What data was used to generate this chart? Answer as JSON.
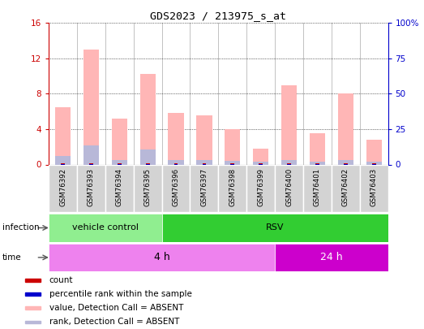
{
  "title": "GDS2023 / 213975_s_at",
  "samples": [
    "GSM76392",
    "GSM76393",
    "GSM76394",
    "GSM76395",
    "GSM76396",
    "GSM76397",
    "GSM76398",
    "GSM76399",
    "GSM76400",
    "GSM76401",
    "GSM76402",
    "GSM76403"
  ],
  "pink_values": [
    6.5,
    13.0,
    5.2,
    10.2,
    5.8,
    5.6,
    4.0,
    1.8,
    9.0,
    3.5,
    8.0,
    2.8
  ],
  "blue_rank_values": [
    1.0,
    2.2,
    0.5,
    1.7,
    0.5,
    0.5,
    0.4,
    0.3,
    0.5,
    0.3,
    0.5,
    0.3
  ],
  "red_count_values": [
    0.18,
    0.18,
    0.18,
    0.18,
    0.18,
    0.18,
    0.18,
    0.18,
    0.18,
    0.18,
    0.18,
    0.18
  ],
  "blue_dot_values": [
    0.07,
    0.07,
    0.07,
    0.07,
    0.07,
    0.07,
    0.07,
    0.07,
    0.07,
    0.07,
    0.07,
    0.07
  ],
  "ylim_left": [
    0,
    16
  ],
  "ylim_right": [
    0,
    100
  ],
  "yticks_left": [
    0,
    4,
    8,
    12,
    16
  ],
  "yticks_right": [
    0,
    25,
    50,
    75,
    100
  ],
  "ytick_labels_right": [
    "0",
    "25",
    "50",
    "75",
    "100%"
  ],
  "infection_groups": [
    {
      "label": "vehicle control",
      "start": 0,
      "end": 4,
      "color": "#90ee90"
    },
    {
      "label": "RSV",
      "start": 4,
      "end": 12,
      "color": "#32cd32"
    }
  ],
  "time_groups": [
    {
      "label": "4 h",
      "start": 0,
      "end": 8,
      "color": "#ee82ee"
    },
    {
      "label": "24 h",
      "start": 8,
      "end": 12,
      "color": "#cc00cc"
    }
  ],
  "infection_label": "infection",
  "time_label": "time",
  "legend_items": [
    {
      "color": "#cc0000",
      "label": "count"
    },
    {
      "color": "#0000cc",
      "label": "percentile rank within the sample"
    },
    {
      "color": "#ffb6b6",
      "label": "value, Detection Call = ABSENT"
    },
    {
      "color": "#b8b8d8",
      "label": "rank, Detection Call = ABSENT"
    }
  ],
  "pink_color": "#ffb6b6",
  "blue_color": "#b8b8d8",
  "red_color": "#cc0000",
  "darkblue_color": "#0000cc",
  "grid_color": "#000000",
  "bg_color": "#ffffff",
  "plot_bg_color": "#ffffff",
  "left_axis_color": "#cc0000",
  "right_axis_color": "#0000cc",
  "cell_bg_color": "#d3d3d3",
  "cell_edge_color": "#ffffff"
}
